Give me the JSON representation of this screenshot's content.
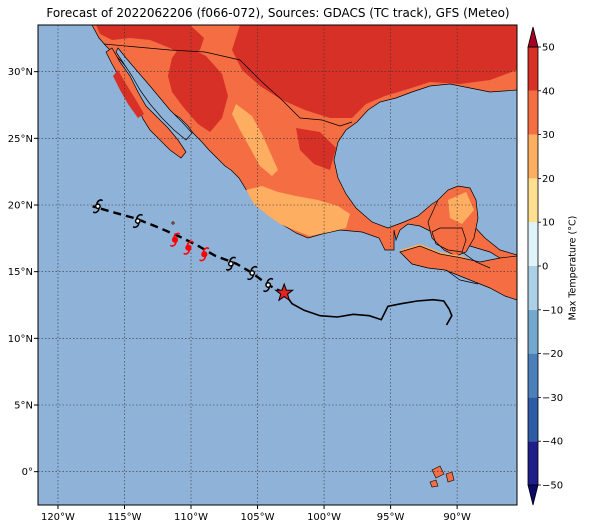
{
  "title": "Forecast of 2022062206 (f066-072), Sources: GDACS (TC track), GFS (Meteo)",
  "map": {
    "lon_range": [
      -121.5,
      -85.5
    ],
    "lat_range": [
      -2.5,
      33.5
    ],
    "lon_ticks": [
      {
        "value": -120,
        "label": "120°W"
      },
      {
        "value": -115,
        "label": "115°W"
      },
      {
        "value": -110,
        "label": "110°W"
      },
      {
        "value": -105,
        "label": "105°W"
      },
      {
        "value": -100,
        "label": "100°W"
      },
      {
        "value": -95,
        "label": "95°W"
      },
      {
        "value": -90,
        "label": "90°W"
      }
    ],
    "lat_ticks": [
      {
        "value": 30,
        "label": "30°N"
      },
      {
        "value": 25,
        "label": "25°N"
      },
      {
        "value": 20,
        "label": "20°N"
      },
      {
        "value": 15,
        "label": "15°N"
      },
      {
        "value": 10,
        "label": "10°N"
      },
      {
        "value": 5,
        "label": "5°N"
      },
      {
        "value": 0,
        "label": "0°"
      }
    ],
    "ocean_color": "#8fb2d8",
    "grid_style": "dotted"
  },
  "colorbar": {
    "label": "Max Temperature (°C)",
    "ticks": [
      "50",
      "40",
      "30",
      "20",
      "10",
      "0",
      "−10",
      "−20",
      "−30",
      "−40",
      "−50"
    ],
    "levels": [
      -50,
      -40,
      -30,
      -20,
      -10,
      0,
      10,
      20,
      30,
      40,
      50
    ],
    "colors": [
      "#1e1e8a",
      "#2f5ba6",
      "#4a7fba",
      "#74a9cf",
      "#abd0e6",
      "#e0f3f8",
      "#fee090",
      "#fdae61",
      "#f46d43",
      "#d73027",
      "#a50026"
    ]
  },
  "track": {
    "past_path": [
      [
        -103.0,
        13.4
      ],
      [
        -102.4,
        12.6
      ],
      [
        -101.5,
        12.1
      ],
      [
        -100.3,
        11.7
      ],
      [
        -99.0,
        11.6
      ],
      [
        -97.8,
        11.8
      ],
      [
        -96.6,
        11.7
      ],
      [
        -95.7,
        11.4
      ],
      [
        -95.2,
        12.4
      ],
      [
        -94.2,
        12.6
      ],
      [
        -93.0,
        12.8
      ],
      [
        -91.8,
        12.9
      ],
      [
        -91.0,
        12.8
      ],
      [
        -90.6,
        12.2
      ],
      [
        -90.4,
        11.7
      ],
      [
        -90.8,
        11.0
      ]
    ],
    "current_position": [
      -103.0,
      13.4
    ],
    "forecast_path": [
      [
        -103.0,
        13.4
      ],
      [
        -104.2,
        14.0
      ],
      [
        -105.4,
        14.9
      ],
      [
        -106.6,
        15.6
      ],
      [
        -108.2,
        16.2
      ],
      [
        -109.4,
        16.9
      ],
      [
        -110.8,
        17.6
      ],
      [
        -112.4,
        18.3
      ],
      [
        -114.2,
        19.0
      ],
      [
        -116.0,
        19.5
      ],
      [
        -117.4,
        19.9
      ]
    ],
    "forecast_points": [
      {
        "lon": -104.2,
        "lat": 14.0,
        "category": "storm"
      },
      {
        "lon": -105.4,
        "lat": 14.9,
        "category": "storm"
      },
      {
        "lon": -107.0,
        "lat": 15.6,
        "category": "storm"
      },
      {
        "lon": -109.0,
        "lat": 16.3,
        "category": "hurricane"
      },
      {
        "lon": -110.2,
        "lat": 16.8,
        "category": "hurricane"
      },
      {
        "lon": -111.2,
        "lat": 17.4,
        "category": "hurricane"
      },
      {
        "lon": -114.0,
        "lat": 18.8,
        "category": "storm"
      },
      {
        "lon": -117.0,
        "lat": 19.9,
        "category": "storm"
      }
    ],
    "hurricane_color": "#ff0000",
    "star_color": "#e32222",
    "icon_name": "tropical-cyclone-icon"
  }
}
